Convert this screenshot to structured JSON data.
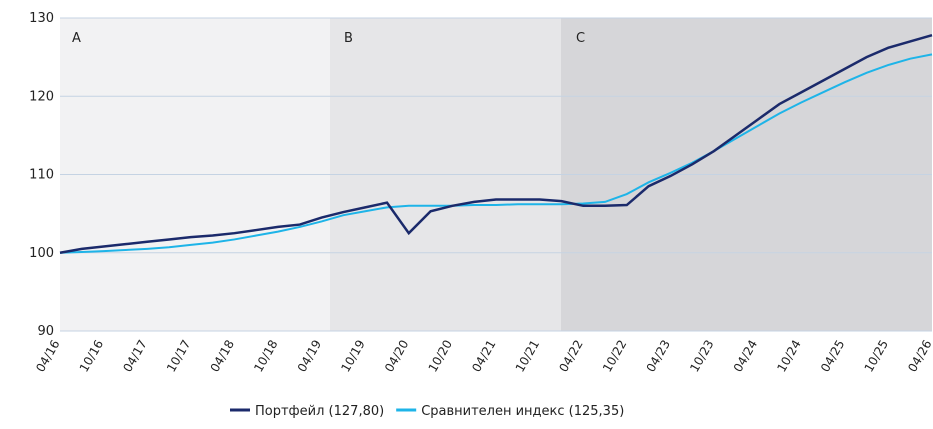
{
  "chart_data": {
    "type": "line",
    "categories": [
      "04/16",
      null,
      "10/16",
      null,
      "04/17",
      null,
      "10/17",
      null,
      "04/18",
      null,
      "10/18",
      null,
      "04/19",
      null,
      "10/19",
      null,
      "04/20",
      null,
      "10/20",
      null,
      "04/21",
      null,
      "10/21",
      null,
      "04/22",
      null,
      "10/22",
      null,
      "04/23",
      null,
      "10/23",
      null,
      "04/24",
      null,
      "10/24",
      null,
      "04/25",
      null,
      "10/25",
      null,
      "04/26"
    ],
    "series": [
      {
        "name": "Портфейл (127,80)",
        "color": "#1b2a6b",
        "values": [
          100,
          100.5,
          100.8,
          101.1,
          101.4,
          101.7,
          102.0,
          102.2,
          102.5,
          102.9,
          103.3,
          103.6,
          104.5,
          105.2,
          105.8,
          106.4,
          102.5,
          105.3,
          106.0,
          106.5,
          106.8,
          106.8,
          106.8,
          106.6,
          106.0,
          106.0,
          106.1,
          108.5,
          109.8,
          111.3,
          113.0,
          115.0,
          117.0,
          119.0,
          120.5,
          122.0,
          123.5,
          125.0,
          126.2,
          127.0,
          127.8
        ]
      },
      {
        "name": "Сравнителен индекс (125,35)",
        "color": "#1eb4e8",
        "values": [
          100,
          100.1,
          100.2,
          100.35,
          100.5,
          100.7,
          101.0,
          101.3,
          101.7,
          102.2,
          102.7,
          103.3,
          104.0,
          104.8,
          105.3,
          105.8,
          106.0,
          106.0,
          106.0,
          106.1,
          106.1,
          106.2,
          106.2,
          106.2,
          106.3,
          106.5,
          107.5,
          109.0,
          110.2,
          111.5,
          113.0,
          114.6,
          116.2,
          117.8,
          119.2,
          120.5,
          121.8,
          123.0,
          124.0,
          124.8,
          125.35
        ]
      }
    ],
    "regions": [
      "A",
      "B",
      "C"
    ],
    "ylim": [
      90,
      130
    ],
    "yticks": [
      90,
      100,
      110,
      120,
      130
    ],
    "grid": true
  }
}
